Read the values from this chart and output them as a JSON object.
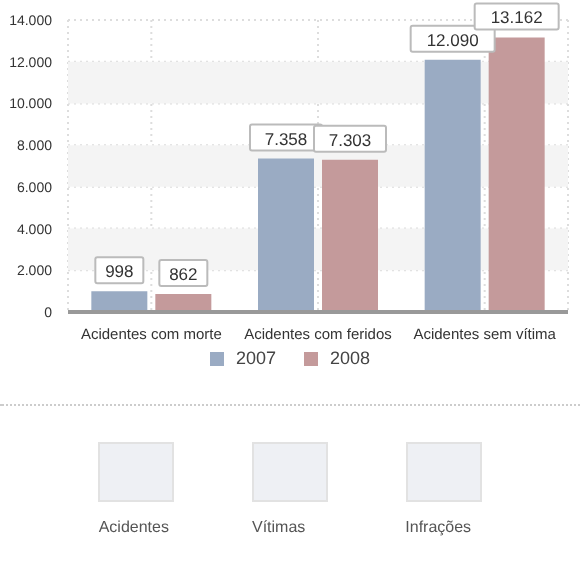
{
  "chart_data": {
    "type": "bar",
    "categories": [
      "Acidentes com morte",
      "Acidentes com feridos",
      "Acidentes sem vítima"
    ],
    "series": [
      {
        "name": "2007",
        "color": "#9aabc3",
        "values": [
          998,
          7358,
          12090
        ]
      },
      {
        "name": "2008",
        "color": "#c49a9b",
        "values": [
          862,
          7303,
          13162
        ]
      }
    ],
    "value_labels": [
      [
        "998",
        "7.358",
        "12.090"
      ],
      [
        "862",
        "7.303",
        "13.162"
      ]
    ],
    "ylim": [
      0,
      14000
    ],
    "yticks": [
      {
        "value": 0,
        "label": "0"
      },
      {
        "value": 2000,
        "label": "2.000"
      },
      {
        "value": 4000,
        "label": "4.000"
      },
      {
        "value": 6000,
        "label": "6.000"
      },
      {
        "value": 8000,
        "label": "8.000"
      },
      {
        "value": 10000,
        "label": "10.000"
      },
      {
        "value": 12000,
        "label": "12.000"
      },
      {
        "value": 14000,
        "label": "14.000"
      }
    ],
    "grid": true,
    "legend": "bottom",
    "annotations": [
      "Acidentes",
      "Vítimas",
      "Infrações"
    ]
  }
}
